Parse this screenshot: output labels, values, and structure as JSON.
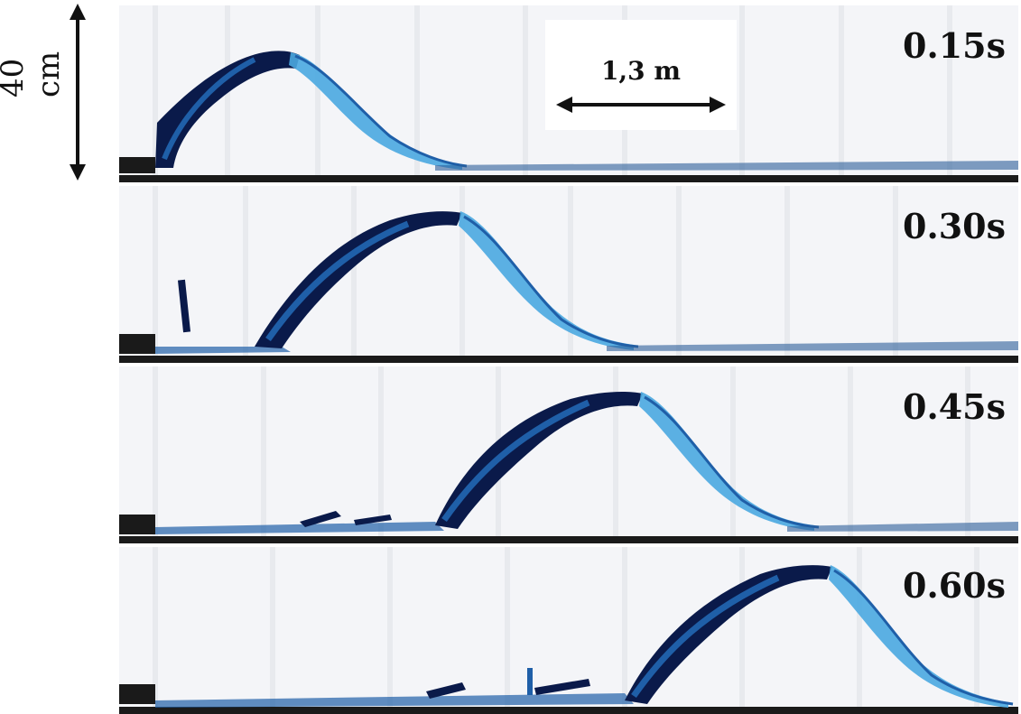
{
  "scale_bars": {
    "vertical_label": "40 cm",
    "horizontal_label": "1,3 m"
  },
  "frames": [
    {
      "time": "0.15s"
    },
    {
      "time": "0.30s"
    },
    {
      "time": "0.45s"
    },
    {
      "time": "0.60s"
    }
  ],
  "colors": {
    "dark_blue": "#0a1a4a",
    "mid_blue": "#1f5fa8",
    "light_blue": "#4aa8e0",
    "background": "#f6f7f9",
    "floor": "#1a1a1a"
  }
}
